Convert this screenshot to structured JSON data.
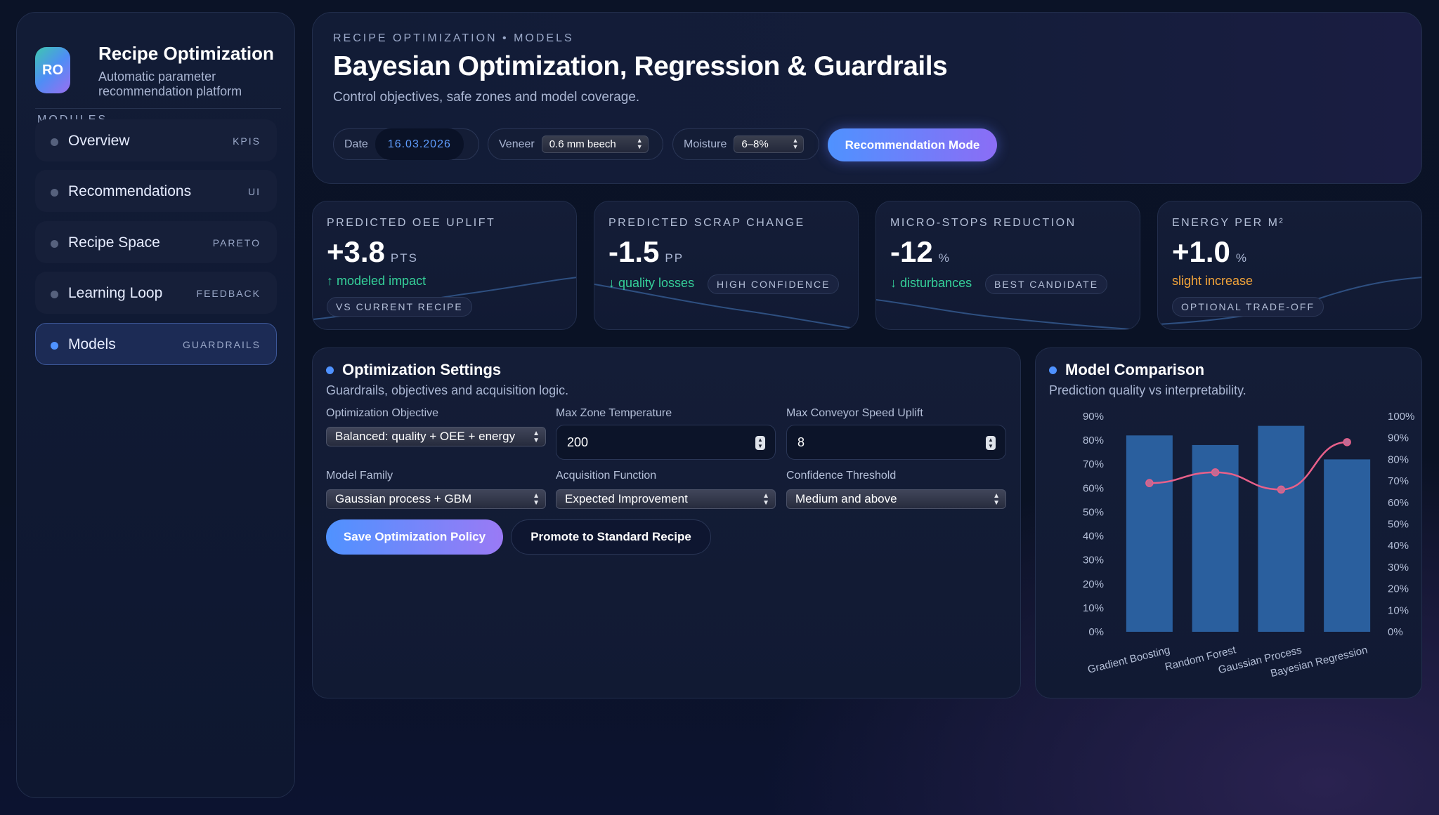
{
  "sidebar": {
    "logo": "RO",
    "title": "Recipe Optimization",
    "subtitle": "Automatic parameter recommendation platform",
    "section_label": "MODULES",
    "items": [
      {
        "label": "Overview",
        "tag": "KPIS"
      },
      {
        "label": "Recommendations",
        "tag": "UI"
      },
      {
        "label": "Recipe Space",
        "tag": "PARETO"
      },
      {
        "label": "Learning Loop",
        "tag": "FEEDBACK"
      },
      {
        "label": "Models",
        "tag": "GUARDRAILS",
        "active": true
      }
    ]
  },
  "header": {
    "eyebrow": "RECIPE OPTIMIZATION • MODELS",
    "title": "Bayesian Optimization, Regression & Guardrails",
    "subtitle": "Control objectives, safe zones and model coverage.",
    "filters": {
      "date_label": "Date",
      "date_value": "16.03.2026",
      "veneer_label": "Veneer",
      "veneer_value": "0.6 mm beech",
      "moisture_label": "Moisture",
      "moisture_value": "6–8%"
    },
    "mode_button": "Recommendation Mode"
  },
  "kpis": [
    {
      "label": "PREDICTED OEE UPLIFT",
      "value": "+3.8",
      "unit": "PTS",
      "arrow": "↑",
      "note": "modeled impact",
      "pill": "VS CURRENT RECIPE"
    },
    {
      "label": "PREDICTED SCRAP CHANGE",
      "value": "-1.5",
      "unit": "PP",
      "arrow": "↓",
      "note": "quality losses",
      "pill": "HIGH CONFIDENCE"
    },
    {
      "label": "MICRO-STOPS REDUCTION",
      "value": "-12",
      "unit": "%",
      "arrow": "↓",
      "note": "disturbances",
      "pill": "BEST CANDIDATE"
    },
    {
      "label": "ENERGY PER M²",
      "value": "+1.0",
      "unit": "%",
      "arrow": "",
      "note": "slight increase",
      "pill": "OPTIONAL TRADE-OFF"
    }
  ],
  "settings": {
    "title": "Optimization Settings",
    "subtitle": "Guardrails, objectives and acquisition logic.",
    "objective_label": "Optimization Objective",
    "objective_value": "Balanced: quality + OEE + energy",
    "max_temp_label": "Max Zone Temperature",
    "max_temp_value": "200",
    "max_speed_label": "Max Conveyor Speed Uplift",
    "max_speed_value": "8",
    "model_family_label": "Model Family",
    "model_family_value": "Gaussian process + GBM",
    "acquisition_label": "Acquisition Function",
    "acquisition_value": "Expected Improvement",
    "confidence_label": "Confidence Threshold",
    "confidence_value": "Medium and above",
    "save_button": "Save Optimization Policy",
    "promote_button": "Promote to Standard Recipe"
  },
  "comparison": {
    "title": "Model Comparison",
    "subtitle": "Prediction quality vs interpretability."
  },
  "colors": {
    "accent": "#4f92ff",
    "accent2": "#8b6df5",
    "positive": "#35d19a",
    "warning": "#f4a53a",
    "bar": "#2a5f9e",
    "line": "#e8608a"
  },
  "chart_data": {
    "type": "bar",
    "categories": [
      "Gradient Boosting",
      "Random Forest",
      "Gaussian Process",
      "Bayesian Regression"
    ],
    "series": [
      {
        "type": "bar",
        "axis": "left",
        "values": [
          82,
          78,
          86,
          72
        ]
      },
      {
        "type": "line",
        "axis": "right",
        "values": [
          69,
          74,
          66,
          88
        ]
      }
    ],
    "y_left_ticks": [
      "0%",
      "10%",
      "20%",
      "30%",
      "40%",
      "50%",
      "60%",
      "70%",
      "80%",
      "90%"
    ],
    "y_right_ticks": [
      "0%",
      "10%",
      "20%",
      "30%",
      "40%",
      "50%",
      "60%",
      "70%",
      "80%",
      "90%",
      "100%"
    ],
    "ylim_left": [
      0,
      90
    ],
    "ylim_right": [
      0,
      100
    ],
    "grid": false
  }
}
